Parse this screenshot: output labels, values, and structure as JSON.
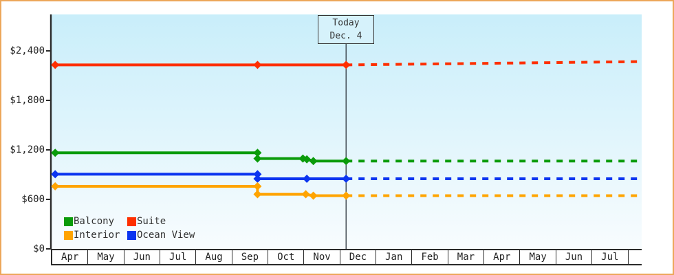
{
  "chart_data": {
    "type": "line",
    "title": "",
    "description": "Cruise cabin price history by category with dotted forecast after today marker",
    "today": {
      "line1": "Today",
      "line2": "Dec. 4",
      "month_index": 8.18
    },
    "y_axis": {
      "unit": "USD",
      "tick_values": [
        0,
        600,
        1200,
        1800,
        2400
      ],
      "tick_labels": [
        "$0",
        "$600",
        "$1,200",
        "$1,800",
        "$2,400"
      ],
      "ylim": [
        0,
        2840
      ]
    },
    "x_axis": {
      "months": [
        "Apr",
        "May",
        "Jun",
        "Jul",
        "Aug",
        "Sep",
        "Oct",
        "Nov",
        "Dec",
        "Jan",
        "Feb",
        "Mar",
        "Apr",
        "May",
        "Jun",
        "Jul"
      ]
    },
    "legend": [
      {
        "name": "Balcony",
        "color": "#0a9b0a"
      },
      {
        "name": "Suite",
        "color": "#fe2f00"
      },
      {
        "name": "Interior",
        "color": "#ffa400"
      },
      {
        "name": "Ocean View",
        "color": "#0b35f0"
      }
    ],
    "series": [
      {
        "name": "Suite",
        "color": "#fe2f00",
        "points": [
          {
            "m": 0.1,
            "v": 2230,
            "marker": true
          },
          {
            "m": 5.72,
            "v": 2230,
            "marker": true
          },
          {
            "m": 8.18,
            "v": 2230,
            "marker": true
          }
        ],
        "forecast": [
          {
            "m": 8.18,
            "v": 2230
          },
          {
            "m": 16.4,
            "v": 2270
          }
        ]
      },
      {
        "name": "Balcony",
        "color": "#0a9b0a",
        "points": [
          {
            "m": 0.1,
            "v": 1165,
            "marker": true
          },
          {
            "m": 5.72,
            "v": 1165,
            "marker": true
          },
          {
            "m": 5.72,
            "v": 1095,
            "marker": true
          },
          {
            "m": 6.98,
            "v": 1095,
            "marker": true
          },
          {
            "m": 7.09,
            "v": 1085,
            "marker": true
          },
          {
            "m": 7.27,
            "v": 1065,
            "marker": true
          },
          {
            "m": 8.18,
            "v": 1065,
            "marker": true
          }
        ],
        "forecast": [
          {
            "m": 8.18,
            "v": 1065
          },
          {
            "m": 16.4,
            "v": 1065
          }
        ]
      },
      {
        "name": "Ocean View",
        "color": "#0b35f0",
        "points": [
          {
            "m": 0.1,
            "v": 905,
            "marker": true
          },
          {
            "m": 5.72,
            "v": 905,
            "marker": true
          },
          {
            "m": 5.72,
            "v": 850,
            "marker": true
          },
          {
            "m": 7.09,
            "v": 850,
            "marker": true
          },
          {
            "m": 8.18,
            "v": 850,
            "marker": true
          }
        ],
        "forecast": [
          {
            "m": 8.18,
            "v": 850
          },
          {
            "m": 16.4,
            "v": 850
          }
        ]
      },
      {
        "name": "Interior",
        "color": "#ffa400",
        "points": [
          {
            "m": 0.1,
            "v": 758,
            "marker": true
          },
          {
            "m": 5.72,
            "v": 758,
            "marker": true
          },
          {
            "m": 5.72,
            "v": 662,
            "marker": true
          },
          {
            "m": 7.06,
            "v": 662,
            "marker": true
          },
          {
            "m": 7.27,
            "v": 645,
            "marker": true
          },
          {
            "m": 8.18,
            "v": 645,
            "marker": true
          }
        ],
        "forecast": [
          {
            "m": 8.18,
            "v": 645
          },
          {
            "m": 16.4,
            "v": 645
          }
        ]
      }
    ],
    "colors": {
      "frame_border": "#eca75a",
      "axis": "#2b2b2b",
      "today_line": "#39424a",
      "plot_top": "#c9eefa",
      "plot_bottom": "#f8fcfe",
      "today_box_bg": "#d6f2fb"
    }
  }
}
